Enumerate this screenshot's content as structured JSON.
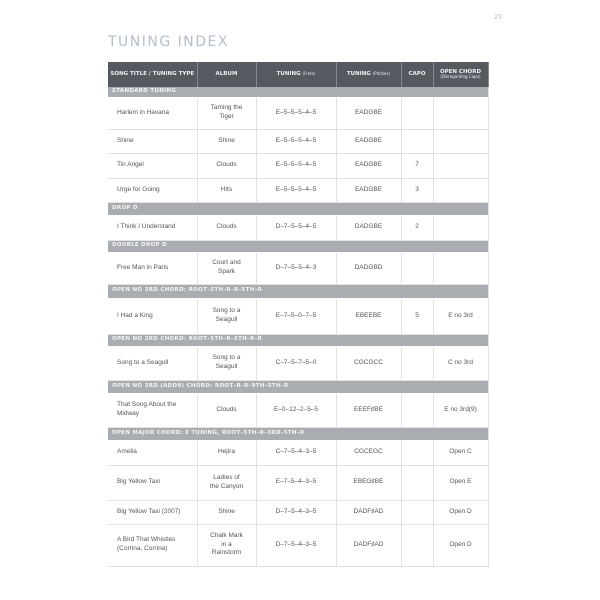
{
  "page_number": "23",
  "title": "TUNING INDEX",
  "columns": [
    {
      "label": "SONG TITLE / TUNING TYPE"
    },
    {
      "label": "ALBUM"
    },
    {
      "label": "TUNING",
      "sub": "(Frets)"
    },
    {
      "label": "TUNING",
      "sub": "(Pitches)"
    },
    {
      "label": "CAPO"
    },
    {
      "label": "OPEN CHORD",
      "sub": "(Disregarding Capo)"
    }
  ],
  "sections": [
    {
      "name": "STANDARD TUNING",
      "rows": [
        [
          "Harlem in Havana",
          "Taming the Tiger",
          "E–5–5–5–4–5",
          "EADGBE",
          "",
          ""
        ],
        [
          "Shine",
          "Shine",
          "E–5–5–5–4–5",
          "EADGBE",
          "",
          ""
        ],
        [
          "Tin Angel",
          "Clouds",
          "E–5–5–5–4–5",
          "EADGBE",
          "7",
          ""
        ],
        [
          "Urge for Going",
          "Hits",
          "E–5–5–5–4–5",
          "EADGBE",
          "3",
          ""
        ]
      ]
    },
    {
      "name": "DROP D",
      "rows": [
        [
          "I Think I Understand",
          "Clouds",
          "D–7–5–5–4–5",
          "DADGBE",
          "2",
          ""
        ]
      ]
    },
    {
      "name": "DOUBLE DROP D",
      "rows": [
        [
          "Free Man in Paris",
          "Court and Spark",
          "D–7–5–5–4–3",
          "DADGBD",
          "",
          ""
        ]
      ]
    },
    {
      "name": "OPEN NO 3RD CHORD: ROOT–5TH–R–R–5TH–R",
      "rows": [
        [
          "I Had a King",
          "Song to a Seagull",
          "E–7–5–0–7–5",
          "EBEEBE",
          "5",
          "E no 3rd"
        ]
      ]
    },
    {
      "name": "OPEN NO 3RD CHORD: ROOT–5TH–R–5TH–R–R",
      "rows": [
        [
          "Song to a Seagull",
          "Song to a Seagull",
          "C–7–5–7–5–0",
          "CGCGCC",
          "",
          "C no 3rd"
        ]
      ]
    },
    {
      "name": "OPEN NO 3RD (ADD9) CHORD: ROOT–R–R–9TH–5TH–R",
      "rows": [
        [
          "That Song About the Midway",
          "Clouds",
          "E–0–12–2–5–5",
          "EEEF♯BE",
          "",
          "E no 3rd(9)"
        ]
      ]
    },
    {
      "name": "OPEN MAJOR CHORD: E TUNING, ROOT–5TH–R–3RD–5TH–R",
      "rows": [
        [
          "Amelia",
          "Hejira",
          "C–7–5–4–3–5",
          "CGCEGC",
          "",
          "Open C"
        ],
        [
          "Big Yellow Taxi",
          "Ladies of the Canyon",
          "E–7–5–4–3–5",
          "EBEG♯BE",
          "",
          "Open E"
        ],
        [
          "Big Yellow Taxi (2007)",
          "Shine",
          "D–7–5–4–3–5",
          "DADF♯AD",
          "",
          "Open D"
        ],
        [
          "A Bird That Whistles (Corrina, Corrina)",
          "Chalk Mark in a Rainstorm",
          "D–7–5–4–3–5",
          "DADF♯AD",
          "",
          "Open D"
        ]
      ]
    }
  ]
}
